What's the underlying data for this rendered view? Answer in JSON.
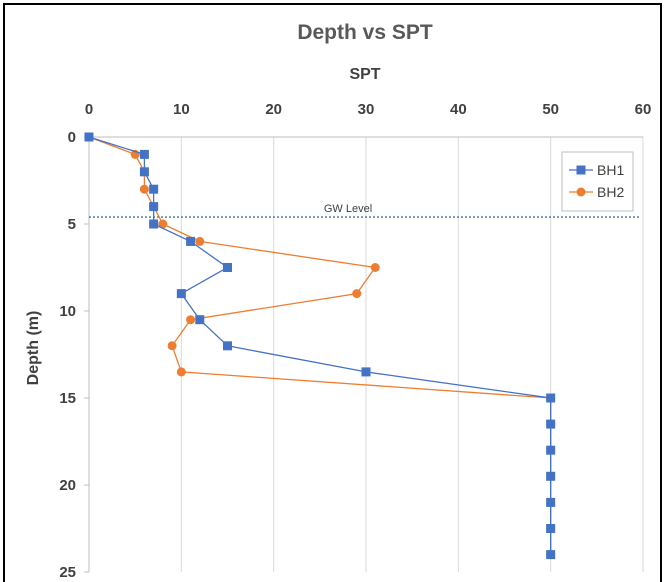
{
  "chart_data": {
    "type": "line",
    "title": "Depth vs SPT",
    "xlabel": "SPT",
    "ylabel": "Depth (m)",
    "xlim": [
      0,
      60
    ],
    "ylim": [
      0,
      25
    ],
    "y_inverted": true,
    "x_axis_position": "top",
    "x_ticks": [
      "0",
      "10",
      "20",
      "30",
      "40",
      "50",
      "60"
    ],
    "y_ticks": [
      "0",
      "5",
      "10",
      "15",
      "20",
      "25"
    ],
    "grid": "vertical",
    "legend": "top-right",
    "series": [
      {
        "name": "BH1",
        "color": "#4472c4",
        "marker": "square",
        "points": [
          [
            0,
            0
          ],
          [
            6,
            1
          ],
          [
            6,
            2
          ],
          [
            7,
            3
          ],
          [
            7,
            4
          ],
          [
            7,
            5
          ],
          [
            11,
            6
          ],
          [
            15,
            7.5
          ],
          [
            10,
            9
          ],
          [
            12,
            10.5
          ],
          [
            15,
            12
          ],
          [
            30,
            13.5
          ],
          [
            50,
            15
          ],
          [
            50,
            16.5
          ],
          [
            50,
            18
          ],
          [
            50,
            19.5
          ],
          [
            50,
            21
          ],
          [
            50,
            22.5
          ],
          [
            50,
            24
          ]
        ]
      },
      {
        "name": "BH2",
        "color": "#ed7d31",
        "marker": "circle",
        "points": [
          [
            0,
            0
          ],
          [
            5,
            1
          ],
          [
            6,
            2
          ],
          [
            6,
            3
          ],
          [
            7,
            4
          ],
          [
            8,
            5
          ],
          [
            12,
            6
          ],
          [
            31,
            7.5
          ],
          [
            29,
            9
          ],
          [
            11,
            10.5
          ],
          [
            9,
            12
          ],
          [
            10,
            13.5
          ],
          [
            50,
            15
          ],
          [
            50,
            16.5
          ],
          [
            50,
            18
          ],
          [
            50,
            19.5
          ],
          [
            50,
            21
          ],
          [
            50,
            22.5
          ],
          [
            50,
            24
          ]
        ]
      }
    ],
    "annotations": [
      {
        "text": "GW Level",
        "depth": 4.6,
        "style": "dotted-line",
        "color": "#2e75b6"
      }
    ]
  }
}
